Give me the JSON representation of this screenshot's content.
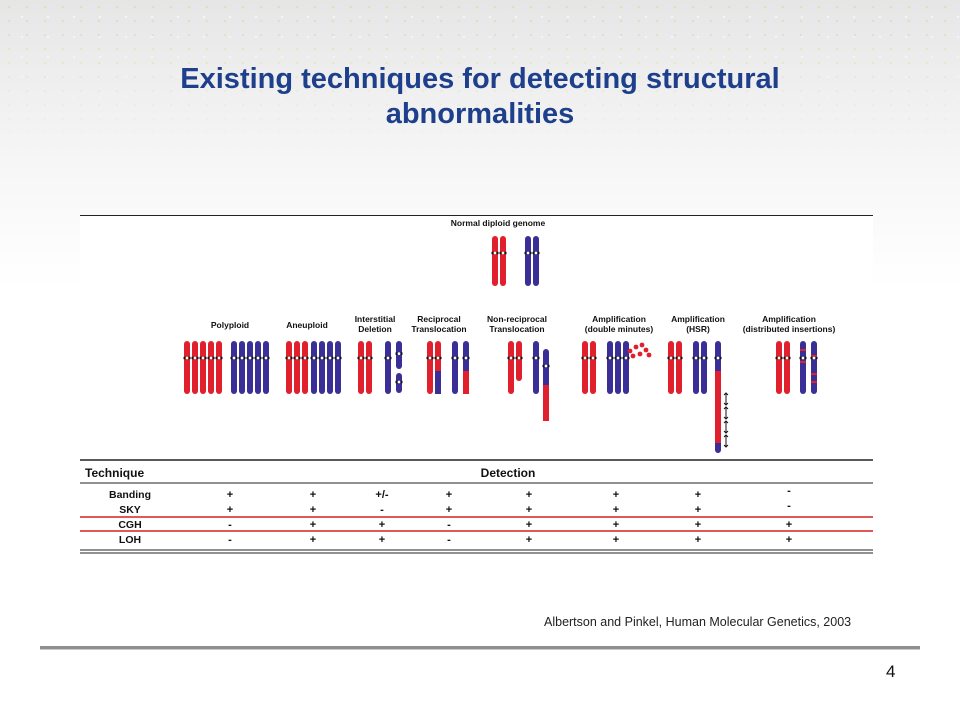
{
  "slide": {
    "title": "Existing techniques for detecting structural abnormalities",
    "citation": "Albertson and Pinkel, Human Molecular Genetics, 2003",
    "page_number": "4"
  },
  "figure": {
    "top_label": "Normal diploid genome",
    "columns": [
      {
        "label": [
          "Polyploid"
        ]
      },
      {
        "label": [
          "Aneuploid"
        ]
      },
      {
        "label": [
          "Interstitial",
          "Deletion"
        ]
      },
      {
        "label": [
          "Reciprocal",
          "Translocation"
        ]
      },
      {
        "label": [
          "Non-reciprocal",
          "Translocation"
        ]
      },
      {
        "label": [
          "Amplification",
          "(double minutes)"
        ]
      },
      {
        "label": [
          "Amplification",
          "(HSR)"
        ]
      },
      {
        "label": [
          "Amplification",
          "(distributed insertions)"
        ]
      }
    ],
    "table": {
      "header_technique": "Technique",
      "header_detection": "Detection",
      "rows": [
        {
          "name": "Banding",
          "values": [
            "+",
            "+",
            "+/-",
            "+",
            "+",
            "+",
            "+",
            "-"
          ]
        },
        {
          "name": "SKY",
          "values": [
            "+",
            "+",
            "-",
            "+",
            "+",
            "+",
            "+",
            "-"
          ]
        },
        {
          "name": "CGH",
          "values": [
            "-",
            "+",
            "+",
            "-",
            "+",
            "+",
            "+",
            "+"
          ],
          "highlighted": true
        },
        {
          "name": "LOH",
          "values": [
            "-",
            "+",
            "+",
            "-",
            "+",
            "+",
            "+",
            "+"
          ]
        }
      ]
    },
    "colors": {
      "red_chromosome": "#e0202c",
      "blue_chromosome": "#3a2f96",
      "highlight_box": "#d62020"
    }
  }
}
